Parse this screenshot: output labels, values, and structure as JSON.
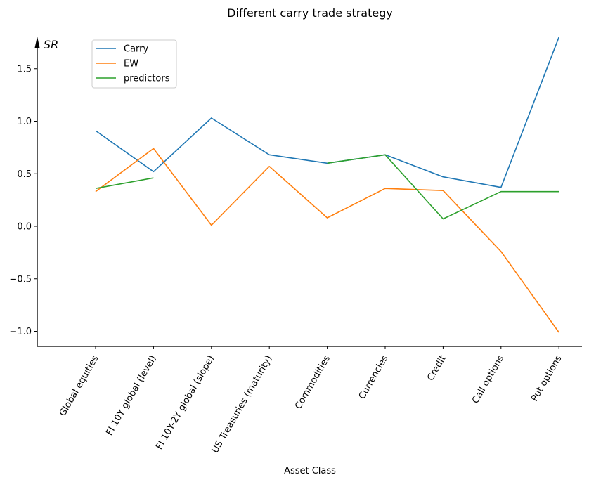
{
  "chart_data": {
    "type": "line",
    "title": "Different carry trade strategy",
    "xlabel": "Asset Class",
    "ylabel": "SR",
    "ylim": [
      -1.15,
      1.8
    ],
    "yticks": [
      -1.0,
      -0.5,
      0.0,
      0.5,
      1.0,
      1.5
    ],
    "ytick_labels": [
      "−1.0",
      "−0.5",
      "0.0",
      "0.5",
      "1.0",
      "1.5"
    ],
    "categories": [
      "Global equities",
      "FI 10Y global (level)",
      "FI 10Y-2Y global (slope)",
      "US Treasuries (maturity)",
      "Commodities",
      "Currencies",
      "Credit",
      "Call options",
      "Put options"
    ],
    "legend_position": "top-left",
    "grid": false,
    "series": [
      {
        "name": "Carry",
        "color": "#1f77b4",
        "values": [
          0.91,
          0.52,
          1.03,
          0.68,
          0.6,
          0.68,
          0.47,
          0.37,
          1.8
        ]
      },
      {
        "name": "EW",
        "color": "#ff7f0e",
        "values": [
          0.33,
          0.74,
          0.01,
          0.57,
          0.08,
          0.36,
          0.34,
          -0.24,
          -1.01
        ]
      },
      {
        "name": "predictors",
        "color": "#2ca02c",
        "values": [
          0.36,
          0.46,
          null,
          null,
          0.6,
          0.68,
          0.07,
          0.33,
          0.33
        ]
      }
    ]
  }
}
